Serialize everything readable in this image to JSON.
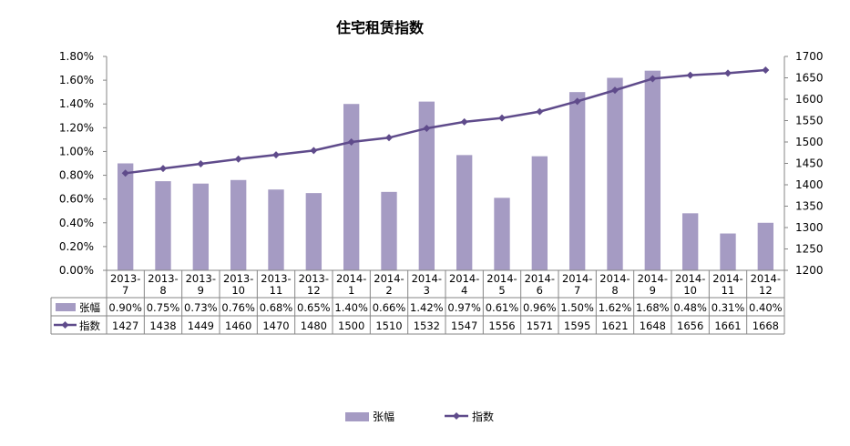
{
  "chart_data": {
    "type": "bar",
    "title": "住宅租赁指数",
    "categories": [
      [
        "2013-",
        "7"
      ],
      [
        "2013-",
        "8"
      ],
      [
        "2013-",
        "9"
      ],
      [
        "2013-",
        "10"
      ],
      [
        "2013-",
        "11"
      ],
      [
        "2013-",
        "12"
      ],
      [
        "2014-",
        "1"
      ],
      [
        "2014-",
        "2"
      ],
      [
        "2014-",
        "3"
      ],
      [
        "2014-",
        "4"
      ],
      [
        "2014-",
        "5"
      ],
      [
        "2014-",
        "6"
      ],
      [
        "2014-",
        "7"
      ],
      [
        "2014-",
        "8"
      ],
      [
        "2014-",
        "9"
      ],
      [
        "2014-",
        "10"
      ],
      [
        "2014-",
        "11"
      ],
      [
        "2014-",
        "12"
      ]
    ],
    "y_left": {
      "ylim": [
        0,
        1.8
      ],
      "ticks": [
        "0.00%",
        "0.20%",
        "0.40%",
        "0.60%",
        "0.80%",
        "1.00%",
        "1.20%",
        "1.40%",
        "1.60%",
        "1.80%"
      ]
    },
    "y_right": {
      "ylim": [
        1200,
        1700
      ],
      "ticks": [
        "1200",
        "1250",
        "1300",
        "1350",
        "1400",
        "1450",
        "1500",
        "1550",
        "1600",
        "1650",
        "1700"
      ]
    },
    "series": [
      {
        "name": "张幅",
        "type": "bar",
        "axis": "left",
        "color": "#a59bc3",
        "values": [
          0.9,
          0.75,
          0.73,
          0.76,
          0.68,
          0.65,
          1.4,
          0.66,
          1.42,
          0.97,
          0.61,
          0.96,
          1.5,
          1.62,
          1.68,
          0.48,
          0.31,
          0.4
        ],
        "labels": [
          "0.90%",
          "0.75%",
          "0.73%",
          "0.76%",
          "0.68%",
          "0.65%",
          "1.40%",
          "0.66%",
          "1.42%",
          "0.97%",
          "0.61%",
          "0.96%",
          "1.50%",
          "1.62%",
          "1.68%",
          "0.48%",
          "0.31%",
          "0.40%"
        ]
      },
      {
        "name": "指数",
        "type": "line",
        "axis": "right",
        "color": "#5f4b8b",
        "values": [
          1427,
          1438,
          1449,
          1460,
          1470,
          1480,
          1500,
          1510,
          1532,
          1547,
          1556,
          1571,
          1595,
          1621,
          1648,
          1656,
          1661,
          1668
        ],
        "labels": [
          "1427",
          "1438",
          "1449",
          "1460",
          "1470",
          "1480",
          "1500",
          "1510",
          "1532",
          "1547",
          "1556",
          "1571",
          "1595",
          "1621",
          "1648",
          "1656",
          "1661",
          "1668"
        ]
      }
    ],
    "data_table": true,
    "legend": "bottom-center",
    "grid": false
  }
}
